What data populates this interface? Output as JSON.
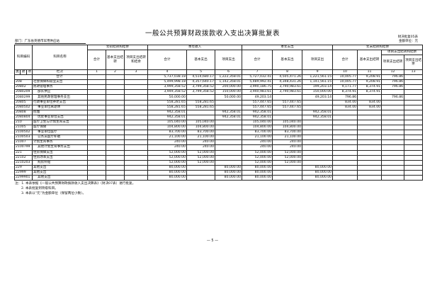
{
  "title": "一般公共预算财政拨款收入支出决算批复表",
  "form_no": "财决批复05表",
  "unit": "金额单位：元",
  "department": "部门：广东省英德市军用供应站",
  "headers": {
    "code": "科目编码",
    "name": "科目名称",
    "lei": "类",
    "kuan": "款",
    "xiang": "项",
    "opening": "年初结转和结余",
    "income": "本年收入",
    "expense": "本年支出",
    "closing": "年末结转和结余",
    "total": "合计",
    "basic_carry": "基本支出结转",
    "project_carry_balance": "项目支出结转和结余",
    "basic": "基本支出",
    "project": "项目支出",
    "basic_carry_balance": "基本支出结转",
    "project_carry": "项目支出结转",
    "project_balance": "项目支出结余",
    "column_index_label": "栏次",
    "column_numbers": [
      "1",
      "2",
      "3",
      "4",
      "5",
      "6",
      "7",
      "8",
      "9",
      "10",
      "11",
      "12",
      "13"
    ]
  },
  "rows": [
    {
      "code": "",
      "name": "合计",
      "level": 0,
      "v": [
        "",
        "",
        "",
        "5,737,038.18",
        "4,514,680.17",
        "1,222,358.01",
        "5,727,032.41",
        "4,505,471.26",
        "1,221,561.15",
        "10,005.77",
        "9,208.91",
        "796.86",
        ""
      ]
    },
    {
      "code": "208",
      "name": "社会保障和就业支出",
      "level": 1,
      "v": [
        "",
        "",
        "",
        "5,499,998.18",
        "4,357,640.17",
        "1,142,358.01",
        "5,489,992.41",
        "4,348,431.26",
        "1,141,561.15",
        "10,005.77",
        "9,208.91",
        "796.86",
        ""
      ]
    },
    {
      "code": "20802",
      "name": "民政管理事务",
      "level": 2,
      "v": [
        "",
        "",
        "",
        "3,999,358.52",
        "3,799,358.52",
        "200,000.00",
        "3,990,186.75",
        "3,790,983.61",
        "199,203.14",
        "9,171.77",
        "8,374.91",
        "796.86",
        ""
      ]
    },
    {
      "code": "2080209",
      "name": "部队供应",
      "level": 3,
      "v": [
        "",
        "",
        "",
        "3,949,358.52",
        "3,799,358.52",
        "150,000.00",
        "3,940,983.61",
        "3,790,983.61",
        "150,000.00",
        "8,374.91",
        "8,374.91",
        "",
        ""
      ]
    },
    {
      "code": "2080299",
      "name": "其他民政管理事务支出",
      "level": 3,
      "v": [
        "",
        "",
        "",
        "50,000.00",
        "",
        "50,000.00",
        "49,203.14",
        "",
        "49,203.14",
        "796.86",
        "",
        "796.86",
        ""
      ]
    },
    {
      "code": "20805",
      "name": "行政事业单位养老支出",
      "level": 2,
      "v": [
        "",
        "",
        "",
        "558,281.65",
        "558,281.65",
        "",
        "557,447.65",
        "557,447.65",
        "",
        "834.00",
        "834.00",
        "",
        ""
      ]
    },
    {
      "code": "2080502",
      "name": "事业单位离退休",
      "level": 3,
      "v": [
        "",
        "",
        "",
        "558,281.65",
        "558,281.65",
        "",
        "557,447.65",
        "557,447.65",
        "",
        "834.00",
        "834.00",
        "",
        ""
      ]
    },
    {
      "code": "20808",
      "name": "抚恤",
      "level": 2,
      "v": [
        "",
        "",
        "",
        "942,358.01",
        "",
        "942,358.01",
        "942,358.01",
        "",
        "942,358.01",
        "",
        "",
        "",
        ""
      ]
    },
    {
      "code": "2080804",
      "name": "优抚事业单位支出",
      "level": 3,
      "v": [
        "",
        "",
        "",
        "942,358.01",
        "",
        "942,358.01",
        "942,358.01",
        "",
        "942,358.01",
        "",
        "",
        "",
        ""
      ]
    },
    {
      "code": "210",
      "name": "医疗卫生与计划生育支出",
      "level": 1,
      "v": [
        "",
        "",
        "",
        "105,040.00",
        "105,040.00",
        "",
        "105,040.00",
        "105,040.00",
        "",
        "",
        "",
        "",
        ""
      ]
    },
    {
      "code": "21005",
      "name": "医疗保障",
      "level": 2,
      "v": [
        "",
        "",
        "",
        "104,800.00",
        "104,800.00",
        "",
        "104,800.00",
        "104,800.00",
        "",
        "",
        "",
        "",
        ""
      ]
    },
    {
      "code": "2100502",
      "name": "事业单位医疗",
      "level": 3,
      "v": [
        "",
        "",
        "",
        "83,700.00",
        "83,700.00",
        "",
        "83,700.00",
        "83,700.00",
        "",
        "",
        "",
        "",
        ""
      ]
    },
    {
      "code": "2100503",
      "name": "公务员医疗补助",
      "level": 3,
      "v": [
        "",
        "",
        "",
        "21,100.00",
        "21,100.00",
        "",
        "21,100.00",
        "21,100.00",
        "",
        "",
        "",
        "",
        ""
      ]
    },
    {
      "code": "21007",
      "name": "计划生育事务",
      "level": 2,
      "v": [
        "",
        "",
        "",
        "240.00",
        "240.00",
        "",
        "240.00",
        "240.00",
        "",
        "",
        "",
        "",
        ""
      ]
    },
    {
      "code": "2100799",
      "name": "其他计划生育事务支出",
      "level": 3,
      "v": [
        "",
        "",
        "",
        "240.00",
        "240.00",
        "",
        "240.00",
        "240.00",
        "",
        "",
        "",
        "",
        ""
      ]
    },
    {
      "code": "221",
      "name": "住房保障支出",
      "level": 1,
      "v": [
        "",
        "",
        "",
        "52,000.00",
        "52,000.00",
        "",
        "52,000.00",
        "52,000.00",
        "",
        "",
        "",
        "",
        ""
      ]
    },
    {
      "code": "22102",
      "name": "住房改革支出",
      "level": 2,
      "v": [
        "",
        "",
        "",
        "52,000.00",
        "52,000.00",
        "",
        "52,000.00",
        "52,000.00",
        "",
        "",
        "",
        "",
        ""
      ]
    },
    {
      "code": "2210203",
      "name": "购房补贴",
      "level": 3,
      "v": [
        "",
        "",
        "",
        "52,000.00",
        "52,000.00",
        "",
        "52,000.00",
        "52,000.00",
        "",
        "",
        "",
        "",
        ""
      ]
    },
    {
      "code": "229",
      "name": "其他支出",
      "level": 1,
      "v": [
        "",
        "",
        "",
        "80,000.00",
        "",
        "80,000.00",
        "80,000.00",
        "",
        "80,000.00",
        "",
        "",
        "",
        ""
      ]
    },
    {
      "code": "22999",
      "name": "其他支出",
      "level": 2,
      "v": [
        "",
        "",
        "",
        "80,000.00",
        "",
        "80,000.00",
        "80,000.00",
        "",
        "80,000.00",
        "",
        "",
        "",
        ""
      ]
    },
    {
      "code": "2299901",
      "name": "其他支出",
      "level": 3,
      "v": [
        "",
        "",
        "",
        "80,000.00",
        "",
        "80,000.00",
        "80,000.00",
        "",
        "80,000.00",
        "",
        "",
        "",
        ""
      ]
    }
  ],
  "notes": [
    "注：1. 本表依据《一般公共预算财政拨款收入支出决算表》（财决07表）进行批复。",
    "2. 本表批复到项级科目。",
    "3. 本表以“元”为金额单位（保留两位小数）。"
  ],
  "page_number": "— 5 —"
}
